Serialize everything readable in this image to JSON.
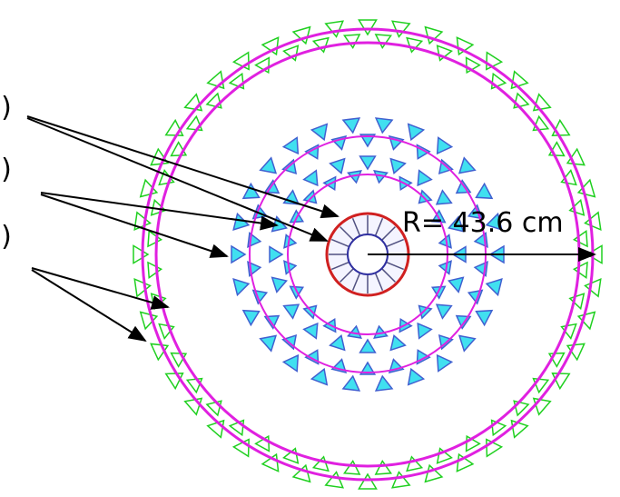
{
  "labels": [
    "D)",
    "D)",
    "D)"
  ],
  "radius_label": "R= 43.6 cm"
}
